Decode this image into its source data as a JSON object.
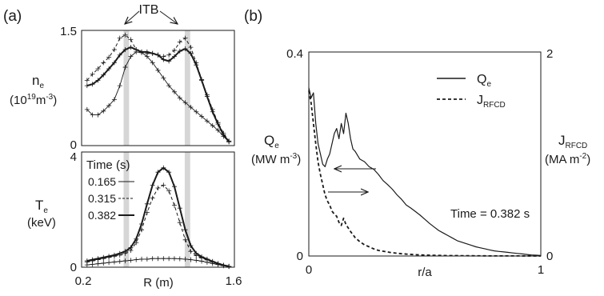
{
  "panel_a": {
    "letter": "(a)",
    "annotation": "ITB",
    "top_ylabel": {
      "sym": "n",
      "sub": "e",
      "unit_pre": "(10",
      "unit_sup": "19",
      "unit_mid": "m",
      "unit_sup2": "-3",
      "unit_post": ")"
    },
    "bottom_ylabel": {
      "sym": "T",
      "sub": "e",
      "unit": "(keV)"
    },
    "xlabel": "R (m)",
    "legend_title": "Time (s)",
    "top_yticks": [
      "1.5",
      "0"
    ],
    "bottom_yticks": [
      "4",
      "0"
    ],
    "xticks": [
      "0.2",
      "1.6"
    ]
  },
  "panel_b": {
    "letter": "(b)",
    "left_ylabel": {
      "sym": "Q",
      "sub": "e",
      "unit_pre": "(MW m",
      "unit_sup": "-3",
      "unit_post": ")"
    },
    "right_ylabel": {
      "sym": "J",
      "sub": "RFCD",
      "unit_pre": "(MA m",
      "unit_sup": "-2",
      "unit_post": ")"
    },
    "xlabel": "r/a",
    "left_yticks": [
      "0.4",
      "0"
    ],
    "right_yticks": [
      "2",
      "0"
    ],
    "xticks": [
      "0",
      "1"
    ],
    "annotation": "Time = 0.382 s",
    "legend": [
      {
        "sym": "Q",
        "sub": "e",
        "style": "solid"
      },
      {
        "sym": "J",
        "sub": "RFCD",
        "style": "dashed"
      }
    ]
  },
  "chart_data": [
    {
      "type": "line",
      "panel": "(a) top",
      "xlabel": "R (m)",
      "ylabel": "n_e (10^19 m^-3)",
      "xlim": [
        0.2,
        1.6
      ],
      "ylim": [
        0,
        1.5
      ],
      "itb_bands_R": [
        [
          0.585,
          0.635
        ],
        [
          1.145,
          1.195
        ]
      ],
      "series": [
        {
          "name": "0.165",
          "style": "thin",
          "x": [
            0.25,
            0.3,
            0.35,
            0.4,
            0.45,
            0.5,
            0.55,
            0.6,
            0.65,
            0.7,
            0.75,
            0.8,
            0.85,
            0.9,
            0.95,
            1.0,
            1.05,
            1.1,
            1.15,
            1.2,
            1.25,
            1.3,
            1.35,
            1.4,
            1.45,
            1.5,
            1.55
          ],
          "y": [
            0.47,
            0.4,
            0.4,
            0.45,
            0.52,
            0.6,
            0.78,
            1.02,
            1.16,
            1.22,
            1.21,
            1.16,
            1.08,
            0.98,
            0.88,
            0.78,
            0.7,
            0.62,
            0.56,
            0.5,
            0.44,
            0.38,
            0.32,
            0.26,
            0.2,
            0.12,
            0.05
          ]
        },
        {
          "name": "0.315",
          "style": "dashed",
          "x": [
            0.25,
            0.3,
            0.35,
            0.4,
            0.45,
            0.5,
            0.55,
            0.6,
            0.65,
            0.7,
            0.75,
            0.8,
            0.85,
            0.9,
            0.95,
            1.0,
            1.05,
            1.1,
            1.15,
            1.2,
            1.25,
            1.3,
            1.35,
            1.4,
            1.45,
            1.5,
            1.55
          ],
          "y": [
            0.85,
            0.93,
            1.0,
            1.08,
            1.15,
            1.25,
            1.4,
            1.44,
            1.38,
            1.25,
            1.22,
            1.2,
            1.2,
            1.18,
            1.16,
            1.18,
            1.24,
            1.35,
            1.4,
            1.28,
            1.08,
            0.86,
            0.66,
            0.47,
            0.3,
            0.16,
            0.06
          ]
        },
        {
          "name": "0.382",
          "style": "thick",
          "x": [
            0.25,
            0.3,
            0.35,
            0.4,
            0.45,
            0.5,
            0.55,
            0.6,
            0.65,
            0.7,
            0.75,
            0.8,
            0.85,
            0.9,
            0.95,
            1.0,
            1.05,
            1.1,
            1.15,
            1.2,
            1.25,
            1.3,
            1.35,
            1.4,
            1.45,
            1.5,
            1.55
          ],
          "y": [
            0.78,
            0.8,
            0.85,
            0.92,
            1.0,
            1.08,
            1.18,
            1.25,
            1.28,
            1.25,
            1.22,
            1.22,
            1.2,
            1.18,
            1.12,
            1.1,
            1.16,
            1.23,
            1.26,
            1.2,
            1.05,
            0.85,
            0.64,
            0.44,
            0.28,
            0.14,
            0.05
          ]
        }
      ]
    },
    {
      "type": "line",
      "panel": "(a) bottom",
      "xlabel": "R (m)",
      "ylabel": "T_e (keV)",
      "xlim": [
        0.2,
        1.6
      ],
      "ylim": [
        0,
        4
      ],
      "legend_title": "Time (s)",
      "series": [
        {
          "name": "0.165",
          "style": "thin",
          "x": [
            0.25,
            0.3,
            0.35,
            0.4,
            0.45,
            0.5,
            0.55,
            0.6,
            0.65,
            0.7,
            0.75,
            0.8,
            0.85,
            0.9,
            0.95,
            1.0,
            1.05,
            1.1,
            1.15,
            1.2,
            1.25,
            1.3,
            1.35,
            1.4,
            1.45,
            1.5,
            1.55
          ],
          "y": [
            0.08,
            0.1,
            0.12,
            0.14,
            0.16,
            0.18,
            0.2,
            0.22,
            0.24,
            0.26,
            0.28,
            0.28,
            0.3,
            0.3,
            0.3,
            0.3,
            0.3,
            0.29,
            0.28,
            0.26,
            0.24,
            0.21,
            0.17,
            0.13,
            0.09,
            0.05,
            0.02
          ]
        },
        {
          "name": "0.315",
          "style": "dashed",
          "x": [
            0.25,
            0.3,
            0.35,
            0.4,
            0.45,
            0.5,
            0.55,
            0.6,
            0.65,
            0.7,
            0.75,
            0.8,
            0.85,
            0.9,
            0.95,
            1.0,
            1.05,
            1.1,
            1.15,
            1.2,
            1.25,
            1.3,
            1.35,
            1.4,
            1.45,
            1.5,
            1.55
          ],
          "y": [
            0.18,
            0.22,
            0.26,
            0.3,
            0.34,
            0.38,
            0.42,
            0.48,
            0.58,
            0.85,
            1.3,
            1.9,
            2.4,
            2.75,
            2.85,
            2.65,
            2.15,
            1.55,
            0.95,
            0.55,
            0.4,
            0.32,
            0.25,
            0.18,
            0.12,
            0.07,
            0.03
          ]
        },
        {
          "name": "0.382",
          "style": "thick",
          "x": [
            0.25,
            0.3,
            0.35,
            0.4,
            0.45,
            0.5,
            0.55,
            0.6,
            0.65,
            0.7,
            0.75,
            0.8,
            0.85,
            0.9,
            0.95,
            1.0,
            1.05,
            1.1,
            1.15,
            1.2,
            1.25,
            1.3,
            1.35,
            1.4,
            1.45,
            1.5,
            1.55
          ],
          "y": [
            0.22,
            0.26,
            0.3,
            0.34,
            0.38,
            0.42,
            0.48,
            0.55,
            0.68,
            0.98,
            1.5,
            2.2,
            2.85,
            3.3,
            3.45,
            3.3,
            2.8,
            2.05,
            1.3,
            0.75,
            0.48,
            0.36,
            0.28,
            0.2,
            0.13,
            0.07,
            0.03
          ]
        }
      ]
    },
    {
      "type": "line",
      "panel": "(b)",
      "xlabel": "r/a",
      "ylabel": "Q_e (MW m^-3)",
      "y2label": "J_RFCD (MA m^-2)",
      "xlim": [
        0,
        1
      ],
      "ylim": [
        0,
        0.4
      ],
      "y2lim": [
        0,
        2
      ],
      "annotation": "Time = 0.382 s",
      "series": [
        {
          "name": "Q_e",
          "style": "solid",
          "axis": "left",
          "x": [
            0.0,
            0.01,
            0.02,
            0.03,
            0.04,
            0.05,
            0.06,
            0.07,
            0.08,
            0.09,
            0.1,
            0.11,
            0.12,
            0.13,
            0.14,
            0.15,
            0.16,
            0.17,
            0.18,
            0.19,
            0.2,
            0.22,
            0.24,
            0.26,
            0.28,
            0.3,
            0.32,
            0.34,
            0.36,
            0.38,
            0.4,
            0.42,
            0.44,
            0.46,
            0.48,
            0.5,
            0.52,
            0.54,
            0.56,
            0.58,
            0.6,
            0.62,
            0.64,
            0.66,
            0.68,
            0.7,
            0.72,
            0.74,
            0.76,
            0.78,
            0.8,
            0.82,
            0.84,
            0.86,
            0.88,
            0.9,
            0.92,
            0.94,
            0.96,
            0.98,
            1.0
          ],
          "y": [
            0.33,
            0.31,
            0.32,
            0.26,
            0.22,
            0.2,
            0.18,
            0.175,
            0.19,
            0.2,
            0.22,
            0.24,
            0.25,
            0.23,
            0.26,
            0.24,
            0.28,
            0.26,
            0.23,
            0.21,
            0.205,
            0.19,
            0.185,
            0.175,
            0.17,
            0.16,
            0.148,
            0.14,
            0.131,
            0.12,
            0.111,
            0.1,
            0.094,
            0.087,
            0.08,
            0.072,
            0.064,
            0.057,
            0.05,
            0.045,
            0.04,
            0.035,
            0.03,
            0.027,
            0.024,
            0.021,
            0.018,
            0.016,
            0.014,
            0.012,
            0.01,
            0.009,
            0.008,
            0.007,
            0.006,
            0.005,
            0.004,
            0.003,
            0.002,
            0.0015,
            0.001
          ]
        },
        {
          "name": "J_RFCD",
          "style": "dashed",
          "axis": "right",
          "x": [
            0.0,
            0.01,
            0.02,
            0.03,
            0.04,
            0.05,
            0.06,
            0.07,
            0.08,
            0.09,
            0.1,
            0.11,
            0.12,
            0.13,
            0.14,
            0.15,
            0.16,
            0.18,
            0.2,
            0.22,
            0.24,
            0.26,
            0.28,
            0.3,
            0.35,
            0.4,
            0.45,
            0.5,
            0.55,
            0.6,
            0.7,
            0.8,
            0.9,
            1.0
          ],
          "y": [
            1.62,
            1.5,
            1.3,
            1.1,
            0.92,
            0.8,
            0.7,
            0.6,
            0.54,
            0.5,
            0.44,
            0.41,
            0.39,
            0.33,
            0.3,
            0.37,
            0.31,
            0.24,
            0.18,
            0.14,
            0.11,
            0.09,
            0.07,
            0.055,
            0.035,
            0.022,
            0.014,
            0.009,
            0.006,
            0.004,
            0.002,
            0.001,
            0.0005,
            0.0
          ]
        }
      ]
    }
  ]
}
